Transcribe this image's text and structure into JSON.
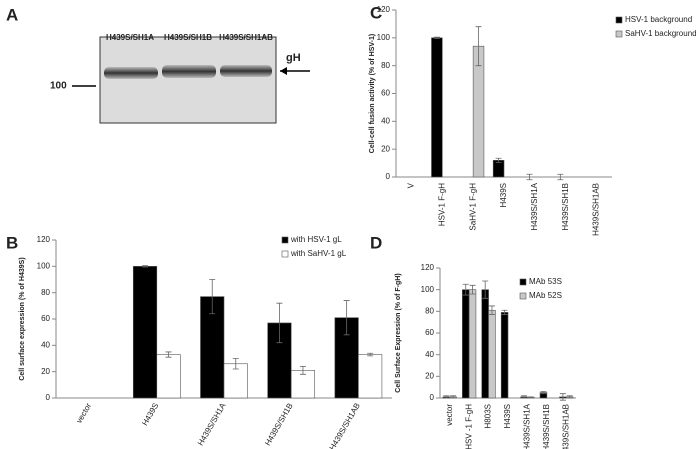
{
  "blot": {
    "panel": "A",
    "lanes": [
      "H439S/SH1A",
      "H439S/SH1B",
      "H439S/SH1AB"
    ],
    "band_label": "gH",
    "marker": "100"
  },
  "chart_data": [
    {
      "type": "bar",
      "panel": "B",
      "ylabel": "Cell surface expression (% of H439S)",
      "categories": [
        "vector",
        "H439S",
        "H439S/SH1A",
        "H439S/SH1B",
        "H439S/SH1AB"
      ],
      "series": [
        {
          "name": "with HSV-1 gL",
          "color": "#000000",
          "values": [
            0,
            100,
            77,
            57,
            61
          ],
          "errors": [
            null,
            0.5,
            13,
            15,
            13
          ]
        },
        {
          "name": "with SaHV-1 gL",
          "color": "#ffffff",
          "values": [
            0,
            33,
            26,
            21,
            33
          ],
          "errors": [
            null,
            2,
            4,
            3,
            1
          ]
        }
      ],
      "ylim": [
        0,
        120
      ],
      "yticks": [
        0,
        20,
        40,
        60,
        80,
        100,
        120
      ]
    },
    {
      "type": "bar",
      "panel": "C",
      "ylabel": "Cell-cell fusion activity (% of HSV-1)",
      "categories": [
        "V",
        "HSV-1 F-gH",
        "SaHV-1 F-gH",
        "H439S",
        "H439S/SH1A",
        "H439S/SH1B",
        "H439S/SH1AB"
      ],
      "series": [
        {
          "name": "HSV-1 background",
          "color": "#000000",
          "values": [
            0,
            100,
            null,
            12,
            0,
            0,
            0
          ],
          "errors": [
            null,
            0.5,
            null,
            1.5,
            2,
            2,
            null
          ]
        },
        {
          "name": "SaHV-1 background",
          "color": "#c8c8c8",
          "values": [
            null,
            null,
            94,
            null,
            null,
            null,
            null
          ],
          "errors": [
            null,
            null,
            14,
            null,
            null,
            null,
            null
          ]
        }
      ],
      "ylim": [
        0,
        120
      ],
      "yticks": [
        0,
        20,
        40,
        60,
        80,
        100,
        120
      ]
    },
    {
      "type": "bar",
      "panel": "D",
      "ylabel": "Cell Surface Expression (% of F-gH)",
      "categories": [
        "vector",
        "HSV -1 F-gH",
        "H803S",
        "H439S",
        "H439S/SH1A",
        "H439S/SH1B",
        "H439S/SH1AB"
      ],
      "series": [
        {
          "name": "MAb 53S",
          "color": "#000000",
          "values": [
            1,
            100,
            100,
            79,
            1,
            5,
            1
          ],
          "errors": [
            1,
            5,
            8,
            2,
            1,
            1,
            3
          ]
        },
        {
          "name": "MAb 52S",
          "color": "#c8c8c8",
          "values": [
            1,
            100,
            81,
            null,
            0.5,
            null,
            1
          ],
          "errors": [
            1,
            4,
            4,
            null,
            0.5,
            null,
            1
          ]
        }
      ],
      "ylim": [
        0,
        120
      ],
      "yticks": [
        0,
        20,
        40,
        60,
        80,
        100,
        120
      ]
    }
  ]
}
